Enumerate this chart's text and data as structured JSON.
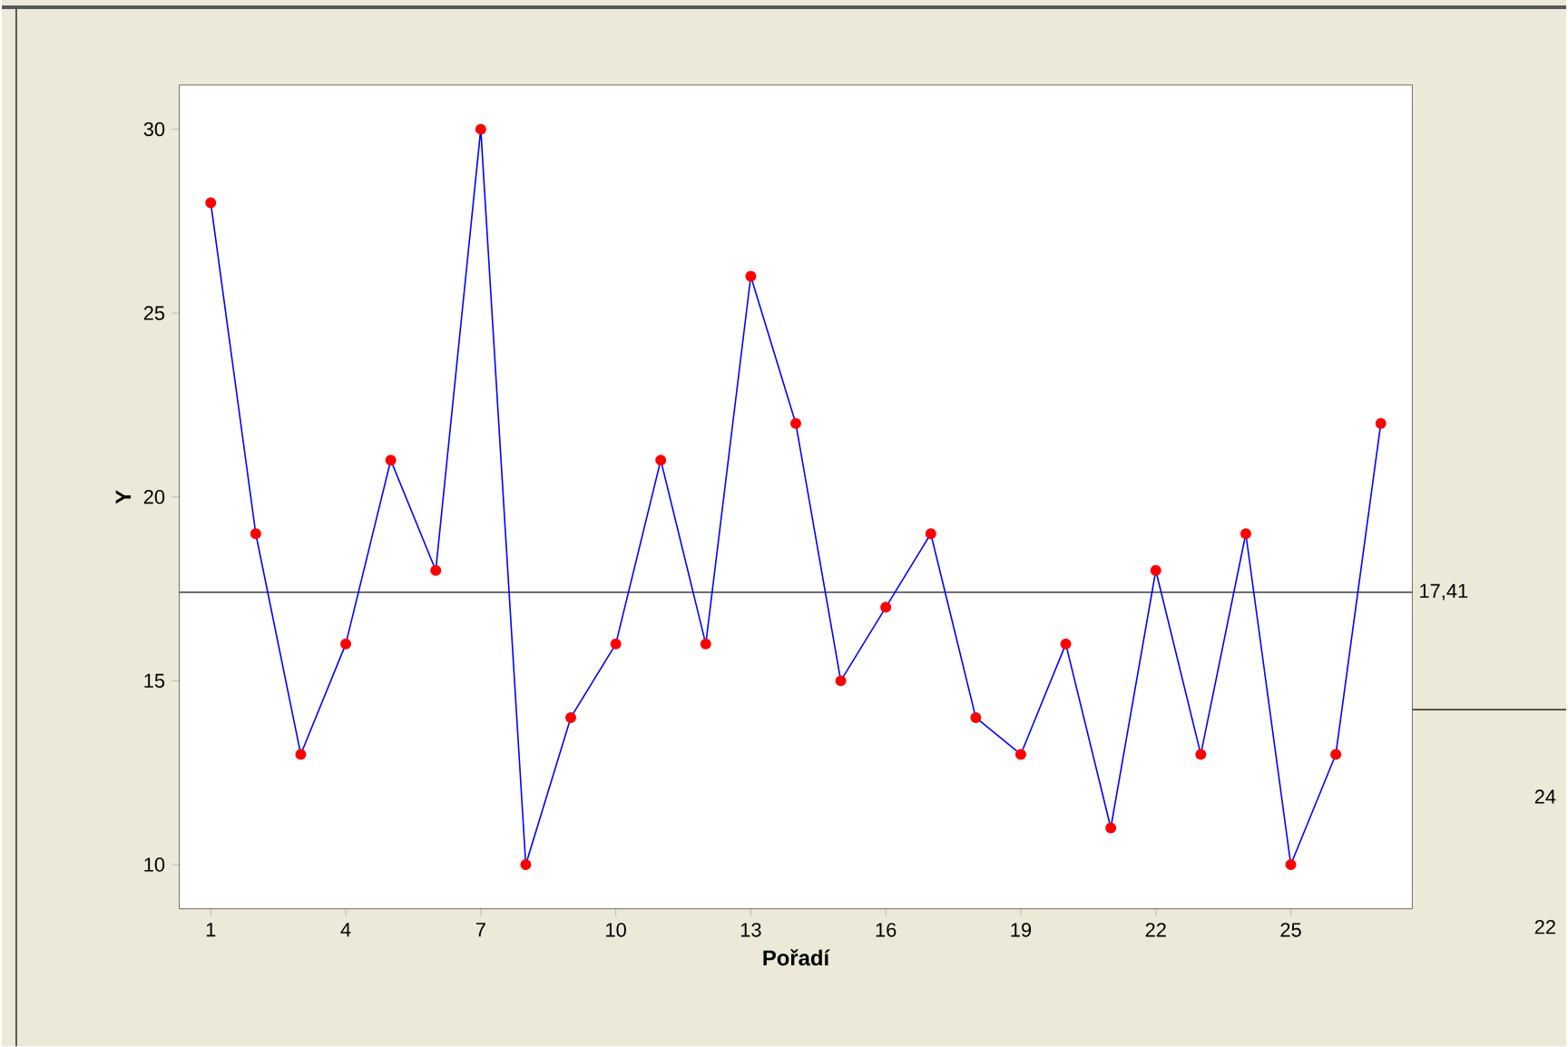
{
  "chart_data": {
    "type": "line",
    "xlabel": "Pořadí",
    "ylabel": "Y",
    "x": [
      1,
      2,
      3,
      4,
      5,
      6,
      7,
      8,
      9,
      10,
      11,
      12,
      13,
      14,
      15,
      16,
      17,
      18,
      19,
      20,
      21,
      22,
      23,
      24,
      25,
      26,
      27
    ],
    "series": [
      {
        "color": "#0000ff",
        "values": [
          28,
          19,
          13,
          16,
          21,
          18,
          30,
          10,
          14,
          16,
          21,
          16,
          26,
          22,
          15,
          17,
          19,
          14,
          13,
          16,
          11,
          18,
          13,
          19,
          10,
          13,
          22
        ]
      }
    ],
    "marker": "circle",
    "line_style": "solid",
    "xlim": [
      0.3,
      27.7
    ],
    "ylim": [
      8.8,
      31.2
    ],
    "xticks": [
      1,
      4,
      7,
      10,
      13,
      16,
      19,
      22,
      25
    ],
    "yticks": [
      10,
      15,
      20,
      25,
      30
    ],
    "ref_lines": [
      {
        "axis": "y",
        "value": 17.41,
        "label": "17,41",
        "color": "#404040"
      }
    ],
    "annotations": [
      "24",
      "22"
    ]
  }
}
